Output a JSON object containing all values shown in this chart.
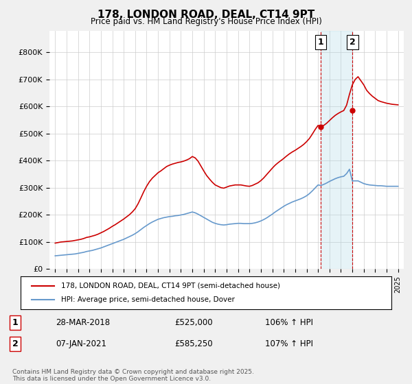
{
  "title": "178, LONDON ROAD, DEAL, CT14 9PT",
  "subtitle": "Price paid vs. HM Land Registry's House Price Index (HPI)",
  "legend_line1": "178, LONDON ROAD, DEAL, CT14 9PT (semi-detached house)",
  "legend_line2": "HPI: Average price, semi-detached house, Dover",
  "footnote": "Contains HM Land Registry data © Crown copyright and database right 2025.\nThis data is licensed under the Open Government Licence v3.0.",
  "marker1_date": "28-MAR-2018",
  "marker1_price": "£525,000",
  "marker1_hpi": "106% ↑ HPI",
  "marker1_x": 2018.24,
  "marker1_y": 525000,
  "marker2_date": "07-JAN-2021",
  "marker2_price": "£585,250",
  "marker2_hpi": "107% ↑ HPI",
  "marker2_x": 2021.02,
  "marker2_y": 585250,
  "red_color": "#cc0000",
  "blue_color": "#6699cc",
  "background_color": "#f0f0f0",
  "plot_bg_color": "#ffffff",
  "ylim": [
    0,
    880000
  ],
  "xlim": [
    1994.5,
    2025.5
  ],
  "yticks": [
    0,
    100000,
    200000,
    300000,
    400000,
    500000,
    600000,
    700000,
    800000
  ],
  "ytick_labels": [
    "£0",
    "£100K",
    "£200K",
    "£300K",
    "£400K",
    "£500K",
    "£600K",
    "£700K",
    "£800K"
  ],
  "xticks": [
    1995,
    1996,
    1997,
    1998,
    1999,
    2000,
    2001,
    2002,
    2003,
    2004,
    2005,
    2006,
    2007,
    2008,
    2009,
    2010,
    2011,
    2012,
    2013,
    2014,
    2015,
    2016,
    2017,
    2018,
    2019,
    2020,
    2021,
    2022,
    2023,
    2024,
    2025
  ],
  "red_x": [
    1995.0,
    1995.25,
    1995.5,
    1995.75,
    1996.0,
    1996.25,
    1996.5,
    1996.75,
    1997.0,
    1997.25,
    1997.5,
    1997.75,
    1998.0,
    1998.25,
    1998.5,
    1998.75,
    1999.0,
    1999.25,
    1999.5,
    1999.75,
    2000.0,
    2000.25,
    2000.5,
    2000.75,
    2001.0,
    2001.25,
    2001.5,
    2001.75,
    2002.0,
    2002.25,
    2002.5,
    2002.75,
    2003.0,
    2003.25,
    2003.5,
    2003.75,
    2004.0,
    2004.25,
    2004.5,
    2004.75,
    2005.0,
    2005.25,
    2005.5,
    2005.75,
    2006.0,
    2006.25,
    2006.5,
    2006.75,
    2007.0,
    2007.25,
    2007.5,
    2007.75,
    2008.0,
    2008.25,
    2008.5,
    2008.75,
    2009.0,
    2009.25,
    2009.5,
    2009.75,
    2010.0,
    2010.25,
    2010.5,
    2010.75,
    2011.0,
    2011.25,
    2011.5,
    2011.75,
    2012.0,
    2012.25,
    2012.5,
    2012.75,
    2013.0,
    2013.25,
    2013.5,
    2013.75,
    2014.0,
    2014.25,
    2014.5,
    2014.75,
    2015.0,
    2015.25,
    2015.5,
    2015.75,
    2016.0,
    2016.25,
    2016.5,
    2016.75,
    2017.0,
    2017.25,
    2017.5,
    2017.75,
    2018.0,
    2018.25,
    2018.5,
    2018.75,
    2019.0,
    2019.25,
    2019.5,
    2019.75,
    2020.0,
    2020.25,
    2020.5,
    2020.75,
    2021.0,
    2021.25,
    2021.5,
    2021.75,
    2022.0,
    2022.25,
    2022.5,
    2022.75,
    2023.0,
    2023.25,
    2023.5,
    2023.75,
    2024.0,
    2024.25,
    2024.5,
    2024.75,
    2025.0
  ],
  "red_y": [
    95000,
    97000,
    99000,
    100000,
    101000,
    102000,
    103000,
    105000,
    107000,
    109000,
    112000,
    116000,
    118000,
    121000,
    124000,
    128000,
    133000,
    138000,
    144000,
    150000,
    157000,
    163000,
    170000,
    177000,
    184000,
    192000,
    200000,
    210000,
    222000,
    240000,
    262000,
    285000,
    305000,
    322000,
    335000,
    345000,
    355000,
    362000,
    370000,
    378000,
    383000,
    387000,
    390000,
    393000,
    395000,
    398000,
    402000,
    407000,
    415000,
    410000,
    398000,
    380000,
    362000,
    345000,
    332000,
    320000,
    310000,
    305000,
    300000,
    298000,
    302000,
    306000,
    308000,
    310000,
    310000,
    310000,
    308000,
    306000,
    305000,
    308000,
    313000,
    318000,
    326000,
    336000,
    348000,
    360000,
    372000,
    383000,
    392000,
    400000,
    408000,
    417000,
    425000,
    432000,
    438000,
    445000,
    452000,
    460000,
    470000,
    482000,
    498000,
    515000,
    530000,
    525000,
    530000,
    538000,
    548000,
    558000,
    567000,
    574000,
    580000,
    585000,
    605000,
    645000,
    680000,
    700000,
    710000,
    695000,
    680000,
    660000,
    648000,
    638000,
    630000,
    622000,
    618000,
    615000,
    612000,
    610000,
    608000,
    607000,
    606000
  ],
  "blue_x": [
    1995.0,
    1995.25,
    1995.5,
    1995.75,
    1996.0,
    1996.25,
    1996.5,
    1996.75,
    1997.0,
    1997.25,
    1997.5,
    1997.75,
    1998.0,
    1998.25,
    1998.5,
    1998.75,
    1999.0,
    1999.25,
    1999.5,
    1999.75,
    2000.0,
    2000.25,
    2000.5,
    2000.75,
    2001.0,
    2001.25,
    2001.5,
    2001.75,
    2002.0,
    2002.25,
    2002.5,
    2002.75,
    2003.0,
    2003.25,
    2003.5,
    2003.75,
    2004.0,
    2004.25,
    2004.5,
    2004.75,
    2005.0,
    2005.25,
    2005.5,
    2005.75,
    2006.0,
    2006.25,
    2006.5,
    2006.75,
    2007.0,
    2007.25,
    2007.5,
    2007.75,
    2008.0,
    2008.25,
    2008.5,
    2008.75,
    2009.0,
    2009.25,
    2009.5,
    2009.75,
    2010.0,
    2010.25,
    2010.5,
    2010.75,
    2011.0,
    2011.25,
    2011.5,
    2011.75,
    2012.0,
    2012.25,
    2012.5,
    2012.75,
    2013.0,
    2013.25,
    2013.5,
    2013.75,
    2014.0,
    2014.25,
    2014.5,
    2014.75,
    2015.0,
    2015.25,
    2015.5,
    2015.75,
    2016.0,
    2016.25,
    2016.5,
    2016.75,
    2017.0,
    2017.25,
    2017.5,
    2017.75,
    2018.0,
    2018.25,
    2018.5,
    2018.75,
    2019.0,
    2019.25,
    2019.5,
    2019.75,
    2020.0,
    2020.25,
    2020.5,
    2020.75,
    2021.0,
    2021.25,
    2021.5,
    2021.75,
    2022.0,
    2022.25,
    2022.5,
    2022.75,
    2023.0,
    2023.25,
    2023.5,
    2023.75,
    2024.0,
    2024.25,
    2024.5,
    2024.75,
    2025.0
  ],
  "blue_y": [
    48000,
    49000,
    50000,
    51000,
    52000,
    53000,
    54000,
    55000,
    57000,
    59000,
    61000,
    64000,
    66000,
    68000,
    71000,
    74000,
    77000,
    81000,
    85000,
    89000,
    93000,
    97000,
    101000,
    105000,
    109000,
    114000,
    119000,
    124000,
    130000,
    137000,
    145000,
    153000,
    160000,
    167000,
    173000,
    178000,
    183000,
    186000,
    189000,
    191000,
    193000,
    194000,
    196000,
    197000,
    199000,
    201000,
    204000,
    207000,
    210000,
    207000,
    202000,
    196000,
    190000,
    184000,
    178000,
    172000,
    168000,
    165000,
    163000,
    162000,
    163000,
    165000,
    166000,
    167000,
    168000,
    168000,
    167000,
    167000,
    167000,
    168000,
    170000,
    173000,
    177000,
    182000,
    188000,
    195000,
    202000,
    210000,
    217000,
    224000,
    231000,
    237000,
    242000,
    247000,
    251000,
    255000,
    259000,
    264000,
    270000,
    278000,
    288000,
    299000,
    310000,
    308000,
    312000,
    317000,
    323000,
    328000,
    333000,
    337000,
    340000,
    342000,
    352000,
    368000,
    325000,
    325000,
    325000,
    320000,
    315000,
    312000,
    310000,
    309000,
    308000,
    307000,
    307000,
    306000,
    305000,
    305000,
    305000,
    305000,
    305000
  ]
}
